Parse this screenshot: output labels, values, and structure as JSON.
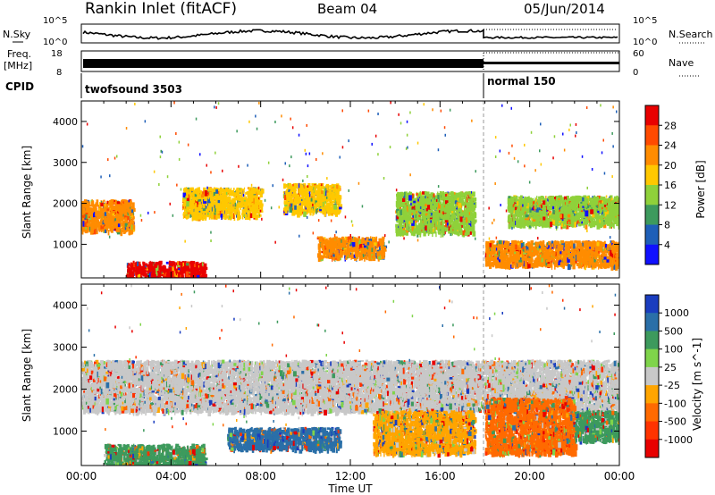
{
  "header": {
    "radar": "Rankin Inlet (fitACF)",
    "beam": "Beam 04",
    "date": "05/Jun/2014"
  },
  "strip_labels": {
    "nsky": "N.Sky",
    "nsky_ticks": [
      "10^5",
      "10^0"
    ],
    "nsearch": "N.Search",
    "nsearch_ticks": [
      "10^5",
      "10^0"
    ],
    "freq": "Freq.",
    "freq_unit": "[MHz]",
    "freq_ticks": [
      "18",
      "8"
    ],
    "nave": "Nave",
    "nave_ticks": [
      "60",
      "0"
    ],
    "cpid": "CPID"
  },
  "cpid_segments": [
    {
      "name": "twofsound 3503",
      "start_h": 0,
      "end_h": 18
    },
    {
      "name": "normal 150",
      "start_h": 18,
      "end_h": 24
    }
  ],
  "axes": {
    "ylabel": "Slant Range [km]",
    "xlabel": "Time UT",
    "y_ticks": [
      "4000",
      "3000",
      "2000",
      "1000"
    ],
    "x_ticks": [
      "00:00",
      "04:00",
      "08:00",
      "12:00",
      "16:00",
      "20:00",
      "00:00"
    ]
  },
  "chart_data": [
    {
      "type": "heatmap",
      "title": "Power",
      "colorbar_label": "Power [dB]",
      "x_range_hours": [
        0,
        24
      ],
      "y_range_km": [
        180,
        4500
      ],
      "colorbar_ticks": [
        "28",
        "24",
        "20",
        "16",
        "12",
        "8",
        "4"
      ],
      "colorbar_colors": [
        "#e80000",
        "#ff4a00",
        "#ff8c00",
        "#ffc800",
        "#8fd13a",
        "#3d9a5d",
        "#1e5fb8",
        "#1010ff"
      ],
      "regions": [
        {
          "t_start": 0,
          "t_end": 2.3,
          "r_low": 1350,
          "r_high": 2100,
          "level": "20"
        },
        {
          "t_start": 2.0,
          "t_end": 5.5,
          "r_low": 180,
          "r_high": 600,
          "level": "28"
        },
        {
          "t_start": 4.5,
          "t_end": 8.0,
          "r_low": 1700,
          "r_high": 2400,
          "level": "16"
        },
        {
          "t_start": 9.0,
          "t_end": 11.5,
          "r_low": 1800,
          "r_high": 2500,
          "level": "16"
        },
        {
          "t_start": 10.5,
          "t_end": 13.5,
          "r_low": 700,
          "r_high": 1200,
          "level": "20"
        },
        {
          "t_start": 14.0,
          "t_end": 17.5,
          "r_low": 1300,
          "r_high": 2300,
          "level": "12"
        },
        {
          "t_start": 18.0,
          "t_end": 24.0,
          "r_low": 500,
          "r_high": 1100,
          "level": "20"
        },
        {
          "t_start": 19.0,
          "t_end": 24.0,
          "r_low": 1500,
          "r_high": 2200,
          "level": "12"
        }
      ]
    },
    {
      "type": "heatmap",
      "title": "Velocity",
      "colorbar_label": "Velocity [m s^-1]",
      "x_range_hours": [
        0,
        24
      ],
      "y_range_km": [
        180,
        4500
      ],
      "colorbar_ticks": [
        "1000",
        "500",
        "100",
        "25",
        "-25",
        "-100",
        "-500",
        "-1000"
      ],
      "colorbar_colors": [
        "#1a3dbf",
        "#2a6fa8",
        "#3d9a5d",
        "#7fd44a",
        "#c8c8c8",
        "#ffa500",
        "#ff6a00",
        "#ff3300",
        "#e80000"
      ],
      "regions": [
        {
          "t_start": 0,
          "t_end": 24,
          "r_low": 1500,
          "r_high": 2700,
          "level": "ground scatter"
        },
        {
          "t_start": 1.0,
          "t_end": 5.5,
          "r_low": 180,
          "r_high": 700,
          "level": "100"
        },
        {
          "t_start": 6.5,
          "t_end": 11.5,
          "r_low": 600,
          "r_high": 1100,
          "level": "500"
        },
        {
          "t_start": 13.0,
          "t_end": 17.5,
          "r_low": 500,
          "r_high": 1500,
          "level": "-100"
        },
        {
          "t_start": 18.0,
          "t_end": 22.0,
          "r_low": 500,
          "r_high": 1800,
          "level": "-500"
        },
        {
          "t_start": 22.0,
          "t_end": 24.0,
          "r_low": 800,
          "r_high": 1500,
          "level": "100"
        }
      ]
    }
  ]
}
